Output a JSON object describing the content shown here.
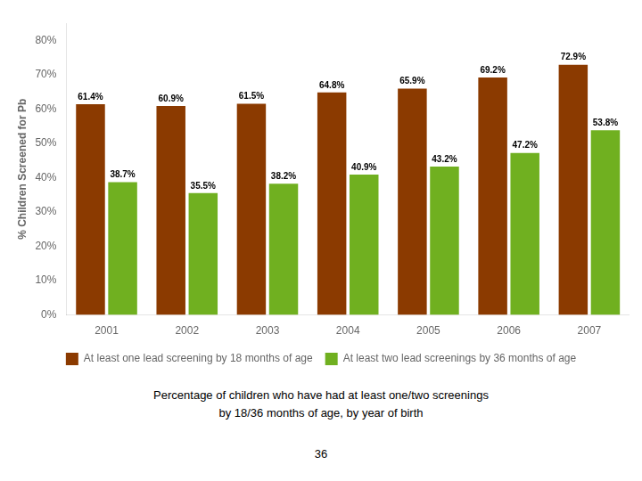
{
  "chart_data": {
    "type": "bar",
    "categories": [
      "2001",
      "2002",
      "2003",
      "2004",
      "2005",
      "2006",
      "2007"
    ],
    "series": [
      {
        "name": "At least one lead screening by 18 months of age",
        "color": "#8B3A00",
        "values": [
          61.4,
          60.9,
          61.5,
          64.8,
          65.9,
          69.2,
          72.9
        ],
        "value_labels": [
          "61.4%",
          "60.9%",
          "61.5%",
          "64.8%",
          "65.9%",
          "69.2%",
          "72.9%"
        ]
      },
      {
        "name": "At least two lead screenings by 36 months of age",
        "color": "#70B020",
        "values": [
          38.7,
          35.5,
          38.2,
          40.9,
          43.2,
          47.2,
          53.8
        ],
        "value_labels": [
          "38.7%",
          "35.5%",
          "38.2%",
          "40.9%",
          "43.2%",
          "47.2%",
          "53.8%"
        ]
      }
    ],
    "ylabel": "% Children Screened for Pb",
    "ylim": [
      0,
      85
    ],
    "yticks": [
      {
        "value": 0,
        "label": "0%"
      },
      {
        "value": 10,
        "label": "10%"
      },
      {
        "value": 20,
        "label": "20%"
      },
      {
        "value": 30,
        "label": "30%"
      },
      {
        "value": 40,
        "label": "40%"
      },
      {
        "value": 50,
        "label": "50%"
      },
      {
        "value": 60,
        "label": "60%"
      },
      {
        "value": 70,
        "label": "70%"
      },
      {
        "value": 80,
        "label": "80%"
      }
    ],
    "grid": false,
    "legend": "bottom",
    "data_labels": true,
    "annotations": [
      "Percentage of children who have had at least one/two screenings",
      "by 18/36 months of age, by year of birth",
      "36"
    ]
  }
}
